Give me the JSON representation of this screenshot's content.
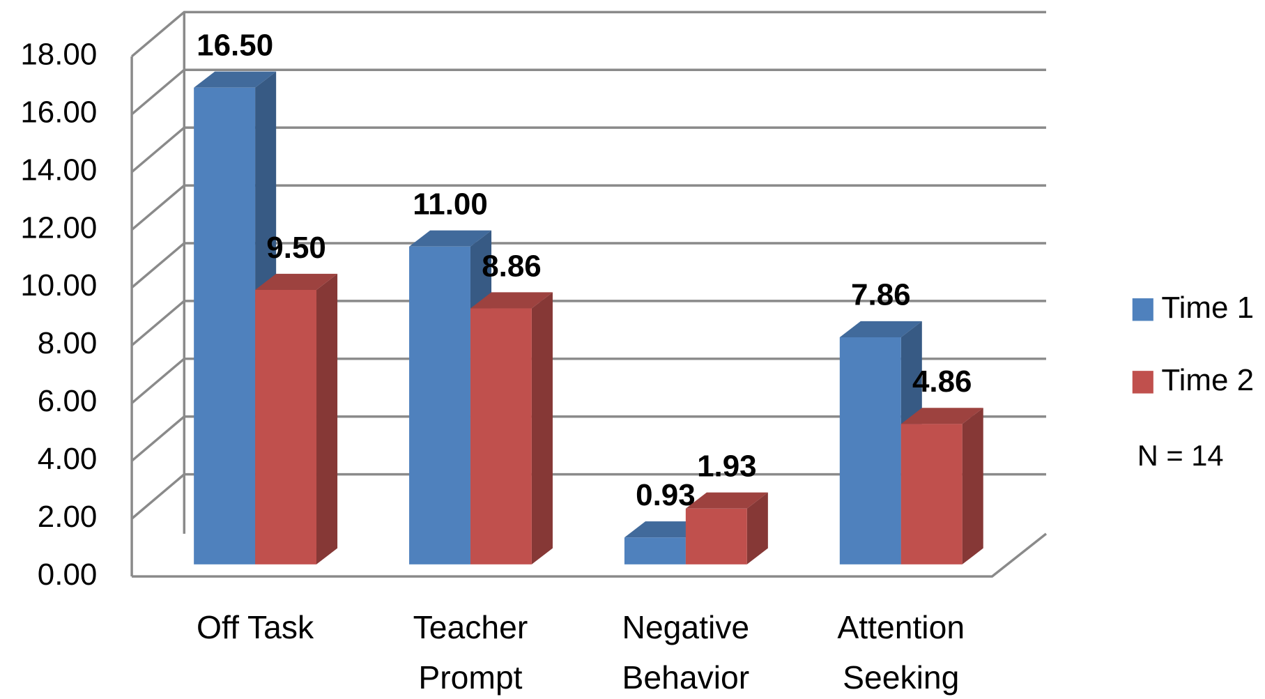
{
  "chart_data": {
    "type": "bar3d",
    "categories": [
      "Off Task",
      "Teacher Prompt",
      "Negative Behavior",
      "Attention Seeking"
    ],
    "series": [
      {
        "name": "Time 1",
        "color": "#4f81bd",
        "values": [
          16.5,
          11,
          0.93,
          7.86
        ],
        "value_labels": [
          "16.50",
          "11.00",
          "0.93",
          "7.86"
        ]
      },
      {
        "name": "Time 2",
        "color": "#c0504d",
        "values": [
          9.5,
          8.86,
          1.93,
          4.86
        ],
        "value_labels": [
          "9.50",
          "8.86",
          "1.93",
          "4.86"
        ]
      }
    ],
    "ylim": [
      0,
      18
    ],
    "yticks": [
      {
        "value": 0,
        "label": "0.00"
      },
      {
        "value": 2,
        "label": "2.00"
      },
      {
        "value": 4,
        "label": "4.00"
      },
      {
        "value": 6,
        "label": "6.00"
      },
      {
        "value": 8,
        "label": "8.00"
      },
      {
        "value": 10,
        "label": "10.00"
      },
      {
        "value": 12,
        "label": "12.00"
      },
      {
        "value": 14,
        "label": "14.00"
      },
      {
        "value": 16,
        "label": "16.00"
      },
      {
        "value": 18,
        "label": "18.00"
      }
    ],
    "grid": true,
    "annotation": "N = 14"
  }
}
